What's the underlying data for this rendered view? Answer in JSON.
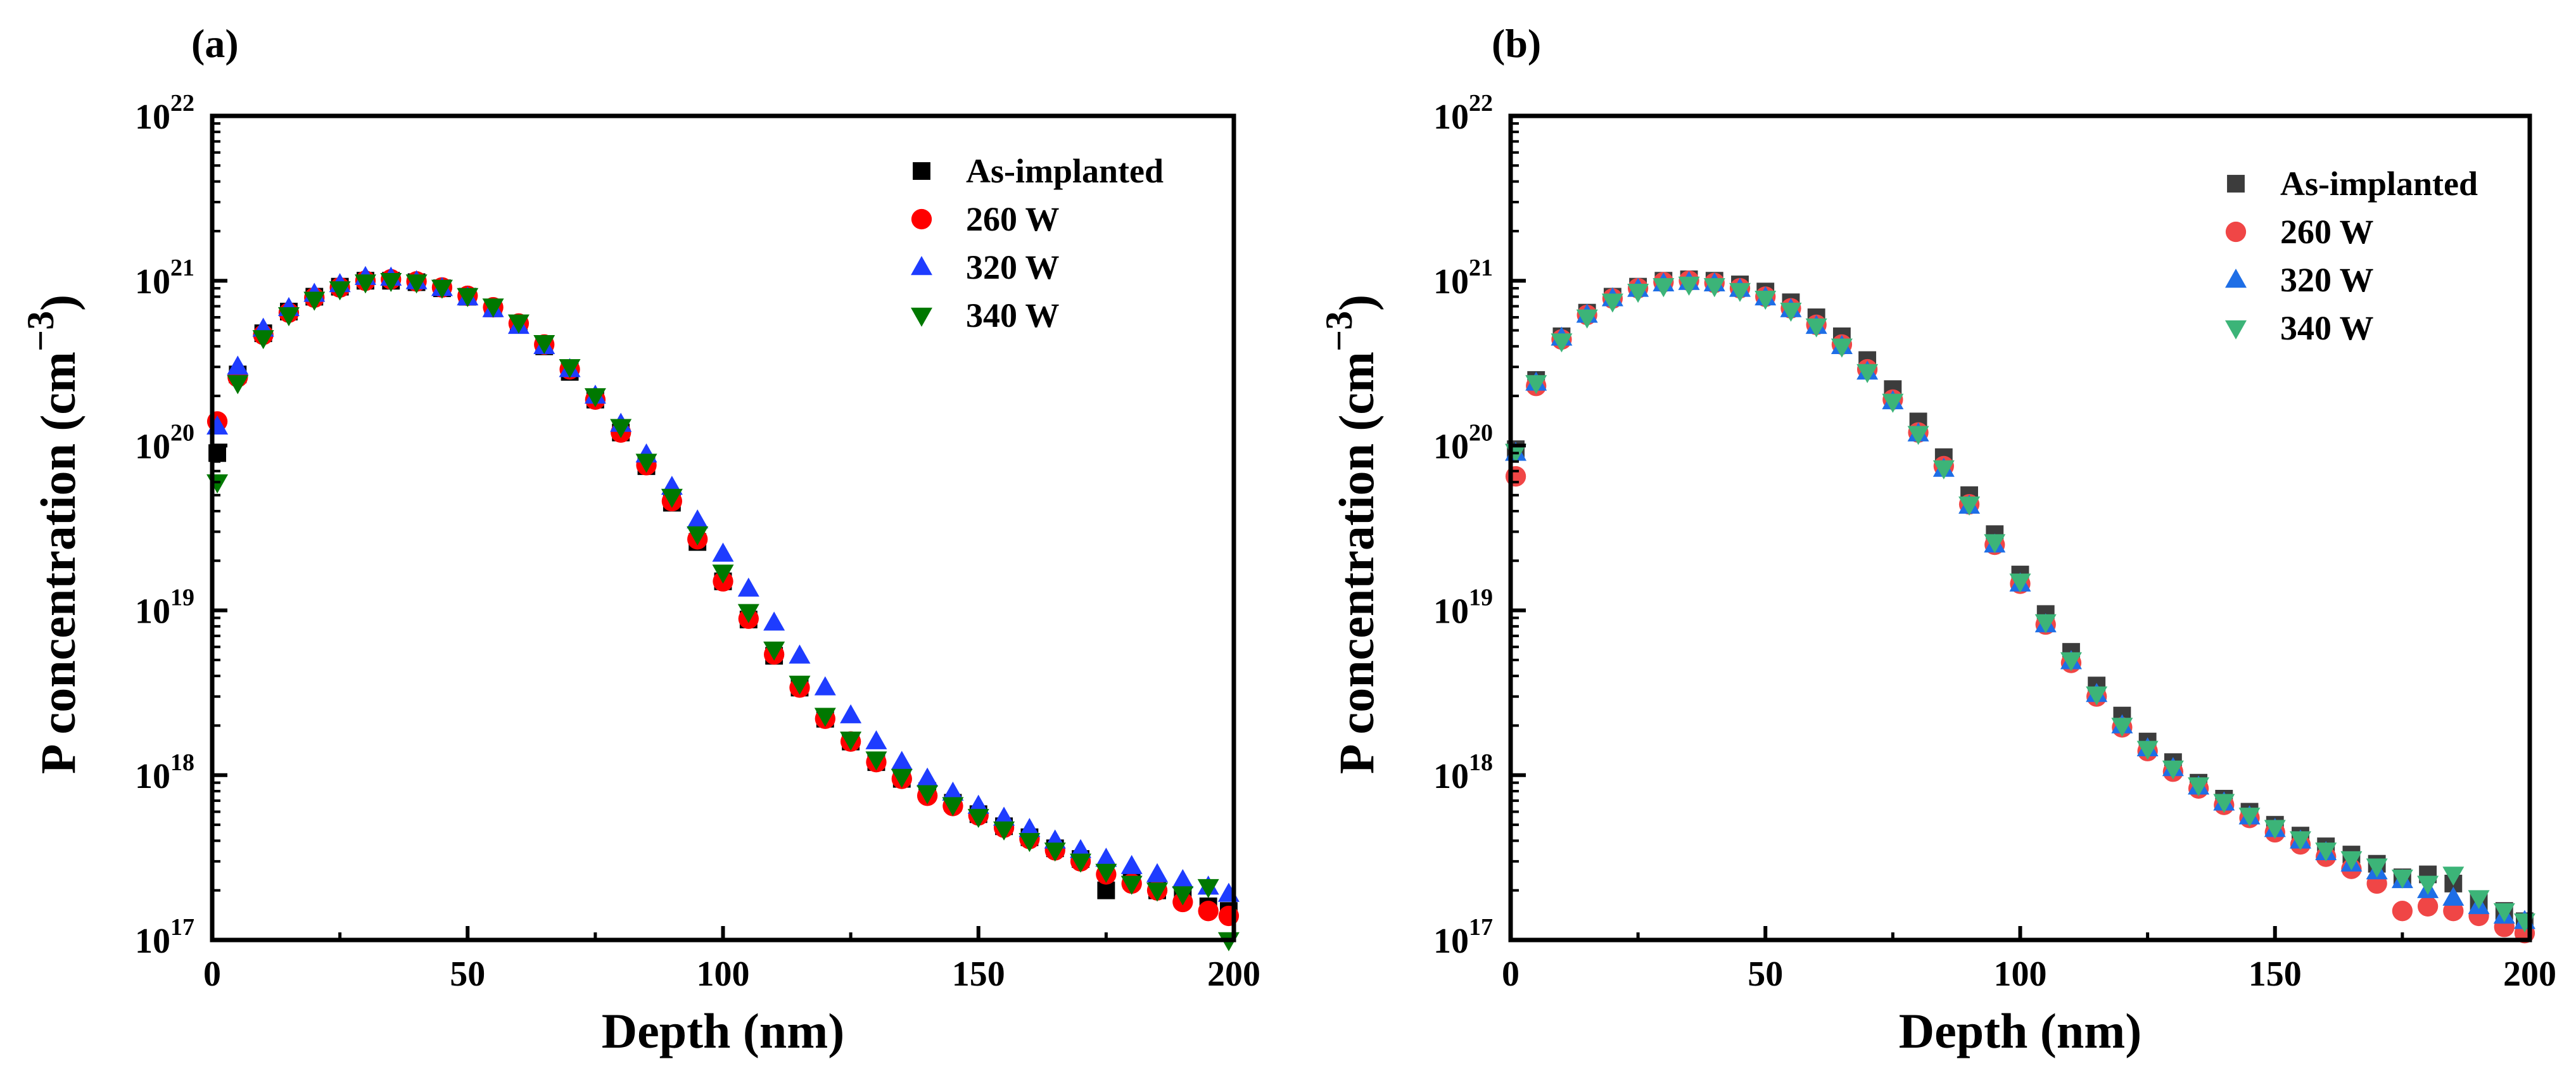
{
  "chart_data": [
    {
      "panel_label": "(a)",
      "type": "scatter",
      "xlabel": "Depth (nm)",
      "ylabel": "P concentration (cm",
      "ylabel_exp": "−3",
      "ylabel_close": ")",
      "xlim": [
        0,
        200
      ],
      "ylim": [
        1e+17,
        1e+22
      ],
      "yscale": "log",
      "xticks": [
        "0",
        "50",
        "100",
        "150",
        "200"
      ],
      "yticks": [
        {
          "base": "10",
          "exp": "17"
        },
        {
          "base": "10",
          "exp": "18"
        },
        {
          "base": "10",
          "exp": "19"
        },
        {
          "base": "10",
          "exp": "20"
        },
        {
          "base": "10",
          "exp": "21"
        },
        {
          "base": "10",
          "exp": "22"
        }
      ],
      "legend_position": "top-right",
      "grid": false,
      "series": [
        {
          "name": "As-implanted",
          "marker": "square",
          "color": "#000000",
          "x": [
            1,
            5,
            10,
            15,
            20,
            25,
            30,
            35,
            40,
            45,
            50,
            55,
            60,
            65,
            70,
            75,
            80,
            85,
            90,
            95,
            100,
            105,
            110,
            115,
            120,
            125,
            130,
            135,
            140,
            145,
            150,
            155,
            160,
            165,
            170,
            175,
            180,
            185,
            190,
            195,
            199
          ],
          "y": [
            9e+19,
            2.7e+20,
            4.8e+20,
            6.5e+20,
            8e+20,
            9.2e+20,
            1e+21,
            1e+21,
            9.8e+20,
            9e+20,
            8e+20,
            6.8e+20,
            5.4e+20,
            4e+20,
            2.8e+20,
            1.9e+20,
            1.2e+20,
            7.5e+19,
            4.5e+19,
            2.6e+19,
            1.5e+19,
            8.8e+18,
            5.3e+18,
            3.4e+18,
            2.2e+18,
            1.6e+18,
            1.2e+18,
            9.5e+17,
            8e+17,
            6.8e+17,
            5.8e+17,
            4.9e+17,
            4.2e+17,
            3.6e+17,
            3.1e+17,
            2e+17,
            2.3e+17,
            2e+17,
            1.8e+17,
            1.6e+17,
            1.5e+17
          ]
        },
        {
          "name": "260 W",
          "marker": "circle",
          "color": "#ff0000",
          "x": [
            1,
            5,
            10,
            15,
            20,
            25,
            30,
            35,
            40,
            45,
            50,
            55,
            60,
            65,
            70,
            75,
            80,
            85,
            90,
            95,
            100,
            105,
            110,
            115,
            120,
            125,
            130,
            135,
            140,
            145,
            150,
            155,
            160,
            165,
            170,
            175,
            180,
            185,
            190,
            195,
            199
          ],
          "y": [
            1.4e+20,
            2.6e+20,
            4.7e+20,
            6.4e+20,
            7.9e+20,
            9.1e+20,
            1e+21,
            1.02e+21,
            9.9e+20,
            9.1e+20,
            8.1e+20,
            6.9e+20,
            5.5e+20,
            4.1e+20,
            2.9e+20,
            1.9e+20,
            1.2e+20,
            7.6e+19,
            4.6e+19,
            2.7e+19,
            1.5e+19,
            8.9e+18,
            5.4e+18,
            3.4e+18,
            2.2e+18,
            1.6e+18,
            1.2e+18,
            9.5e+17,
            7.5e+17,
            6.5e+17,
            5.7e+17,
            4.8e+17,
            4.1e+17,
            3.5e+17,
            3e+17,
            2.5e+17,
            2.2e+17,
            2e+17,
            1.7e+17,
            1.5e+17,
            1.4e+17
          ]
        },
        {
          "name": "320 W",
          "marker": "triangle-up",
          "color": "#1e3cff",
          "x": [
            1,
            5,
            10,
            15,
            20,
            25,
            30,
            35,
            40,
            45,
            50,
            55,
            60,
            65,
            70,
            75,
            80,
            85,
            90,
            95,
            100,
            105,
            110,
            115,
            120,
            125,
            130,
            135,
            140,
            145,
            150,
            155,
            160,
            165,
            170,
            175,
            180,
            185,
            190,
            195,
            199
          ],
          "y": [
            1.3e+20,
            3e+20,
            5.1e+20,
            6.8e+20,
            8.3e+20,
            9.5e+20,
            1.05e+21,
            1.04e+21,
            9.9e+20,
            9e+20,
            7.9e+20,
            6.7e+20,
            5.3e+20,
            4e+20,
            2.9e+20,
            2e+20,
            1.35e+20,
            8.8e+19,
            5.6e+19,
            3.5e+19,
            2.2e+19,
            1.35e+19,
            8.4e+18,
            5.3e+18,
            3.4e+18,
            2.3e+18,
            1.6e+18,
            1.2e+18,
            9.5e+17,
            7.8e+17,
            6.5e+17,
            5.5e+17,
            4.7e+17,
            4e+17,
            3.5e+17,
            3.1e+17,
            2.8e+17,
            2.5e+17,
            2.3e+17,
            2.1e+17,
            1.9e+17
          ]
        },
        {
          "name": "340 W",
          "marker": "triangle-down",
          "color": "#007800",
          "x": [
            1,
            5,
            10,
            15,
            20,
            25,
            30,
            35,
            40,
            45,
            50,
            55,
            60,
            65,
            70,
            75,
            80,
            85,
            90,
            95,
            100,
            105,
            110,
            115,
            120,
            125,
            130,
            135,
            140,
            145,
            150,
            155,
            160,
            165,
            170,
            175,
            180,
            185,
            190,
            195,
            199
          ],
          "y": [
            6e+19,
            2.4e+20,
            4.5e+20,
            6.2e+20,
            7.7e+20,
            8.9e+20,
            9.8e+20,
            1e+21,
            9.8e+20,
            9.1e+20,
            8.1e+20,
            7e+20,
            5.6e+20,
            4.2e+20,
            3e+20,
            2e+20,
            1.3e+20,
            8e+19,
            4.9e+19,
            2.9e+19,
            1.7e+19,
            9.8e+18,
            5.8e+18,
            3.6e+18,
            2.3e+18,
            1.65e+18,
            1.25e+18,
            9.8e+17,
            7.8e+17,
            6.6e+17,
            5.6e+17,
            4.7e+17,
            4e+17,
            3.5e+17,
            3e+17,
            2.6e+17,
            2.2e+17,
            2e+17,
            1.9e+17,
            2.1e+17,
            1e+17
          ]
        }
      ]
    },
    {
      "panel_label": "(b)",
      "type": "scatter",
      "xlabel": "Depth (nm)",
      "ylabel": "P concentration (cm",
      "ylabel_exp": "−3",
      "ylabel_close": ")",
      "xlim": [
        0,
        200
      ],
      "ylim": [
        1e+17,
        1e+22
      ],
      "yscale": "log",
      "xticks": [
        "0",
        "50",
        "100",
        "150",
        "200"
      ],
      "yticks": [
        {
          "base": "10",
          "exp": "17"
        },
        {
          "base": "10",
          "exp": "18"
        },
        {
          "base": "10",
          "exp": "19"
        },
        {
          "base": "10",
          "exp": "20"
        },
        {
          "base": "10",
          "exp": "21"
        },
        {
          "base": "10",
          "exp": "22"
        }
      ],
      "legend_position": "top-right",
      "grid": false,
      "series": [
        {
          "name": "As-implanted",
          "marker": "square",
          "color": "#3c3c3c",
          "x": [
            1,
            5,
            10,
            15,
            20,
            25,
            30,
            35,
            40,
            45,
            50,
            55,
            60,
            65,
            70,
            75,
            80,
            85,
            90,
            95,
            100,
            105,
            110,
            115,
            120,
            125,
            130,
            135,
            140,
            145,
            150,
            155,
            160,
            165,
            170,
            175,
            180,
            185,
            190,
            195,
            199
          ],
          "y": [
            9.5e+19,
            2.5e+20,
            4.6e+20,
            6.4e+20,
            8e+20,
            9.2e+20,
            1e+21,
            1.02e+21,
            1e+21,
            9.5e+20,
            8.6e+20,
            7.4e+20,
            6e+20,
            4.6e+20,
            3.3e+20,
            2.2e+20,
            1.4e+20,
            8.5e+19,
            5e+19,
            2.9e+19,
            1.65e+19,
            9.5e+18,
            5.6e+18,
            3.5e+18,
            2.3e+18,
            1.6e+18,
            1.2e+18,
            9e+17,
            7.2e+17,
            6e+17,
            5e+17,
            4.3e+17,
            3.7e+17,
            3.3e+17,
            2.9e+17,
            2.4e+17,
            2.5e+17,
            2.2e+17,
            1.7e+17,
            1.5e+17,
            1.3e+17
          ]
        },
        {
          "name": "260 W",
          "marker": "circle",
          "color": "#f04646",
          "x": [
            1,
            5,
            10,
            15,
            20,
            25,
            30,
            35,
            40,
            45,
            50,
            55,
            60,
            65,
            70,
            75,
            80,
            85,
            90,
            95,
            100,
            105,
            110,
            115,
            120,
            125,
            130,
            135,
            140,
            145,
            150,
            155,
            160,
            165,
            170,
            175,
            180,
            185,
            190,
            195,
            199
          ],
          "y": [
            6.5e+19,
            2.3e+20,
            4.4e+20,
            6.2e+20,
            7.8e+20,
            9e+20,
            9.8e+20,
            1e+21,
            9.7e+20,
            9e+20,
            8e+20,
            6.8e+20,
            5.4e+20,
            4.1e+20,
            2.9e+20,
            1.9e+20,
            1.2e+20,
            7.5e+19,
            4.4e+19,
            2.5e+19,
            1.45e+19,
            8.2e+18,
            4.8e+18,
            3e+18,
            1.95e+18,
            1.4e+18,
            1.05e+18,
            8.3e+17,
            6.6e+17,
            5.5e+17,
            4.5e+17,
            3.8e+17,
            3.2e+17,
            2.7e+17,
            2.2e+17,
            1.5e+17,
            1.6e+17,
            1.5e+17,
            1.4e+17,
            1.2e+17,
            1.1e+17
          ]
        },
        {
          "name": "320 W",
          "marker": "triangle-up",
          "color": "#1e6ee6",
          "x": [
            1,
            5,
            10,
            15,
            20,
            25,
            30,
            35,
            40,
            45,
            50,
            55,
            60,
            65,
            70,
            75,
            80,
            85,
            90,
            95,
            100,
            105,
            110,
            115,
            120,
            125,
            130,
            135,
            140,
            145,
            150,
            155,
            160,
            165,
            170,
            175,
            180,
            185,
            190,
            195,
            199
          ],
          "y": [
            9e+19,
            2.4e+20,
            4.5e+20,
            6.2e+20,
            7.8e+20,
            8.9e+20,
            9.6e+20,
            9.8e+20,
            9.6e+20,
            8.9e+20,
            7.9e+20,
            6.7e+20,
            5.3e+20,
            4e+20,
            2.8e+20,
            1.85e+20,
            1.18e+20,
            7.2e+19,
            4.3e+19,
            2.5e+19,
            1.45e+19,
            8.2e+18,
            4.9e+18,
            3.1e+18,
            2e+18,
            1.45e+18,
            1.1e+18,
            8.5e+17,
            6.8e+17,
            5.6e+17,
            4.7e+17,
            4e+17,
            3.4e+17,
            2.9e+17,
            2.6e+17,
            2.3e+17,
            2e+17,
            1.8e+17,
            1.6e+17,
            1.4e+17,
            1.3e+17
          ]
        },
        {
          "name": "340 W",
          "marker": "triangle-down",
          "color": "#3cb478",
          "x": [
            1,
            5,
            10,
            15,
            20,
            25,
            30,
            35,
            40,
            45,
            50,
            55,
            60,
            65,
            70,
            75,
            80,
            85,
            90,
            95,
            100,
            105,
            110,
            115,
            120,
            125,
            130,
            135,
            140,
            145,
            150,
            155,
            160,
            165,
            170,
            175,
            180,
            185,
            190,
            195,
            199
          ],
          "y": [
            9.2e+19,
            2.4e+20,
            4.3e+20,
            6e+20,
            7.5e+20,
            8.6e+20,
            9.3e+20,
            9.5e+20,
            9.3e+20,
            8.7e+20,
            7.8e+20,
            6.6e+20,
            5.3e+20,
            4e+20,
            2.8e+20,
            1.85e+20,
            1.18e+20,
            7.3e+19,
            4.4e+19,
            2.6e+19,
            1.5e+19,
            8.5e+18,
            5e+18,
            3.1e+18,
            2e+18,
            1.45e+18,
            1.1e+18,
            8.7e+17,
            6.9e+17,
            5.7e+17,
            4.8e+17,
            4.1e+17,
            3.5e+17,
            3.1e+17,
            2.8e+17,
            2.4e+17,
            2.2e+17,
            2.5e+17,
            1.8e+17,
            1.5e+17,
            1.3e+17
          ]
        }
      ]
    }
  ]
}
